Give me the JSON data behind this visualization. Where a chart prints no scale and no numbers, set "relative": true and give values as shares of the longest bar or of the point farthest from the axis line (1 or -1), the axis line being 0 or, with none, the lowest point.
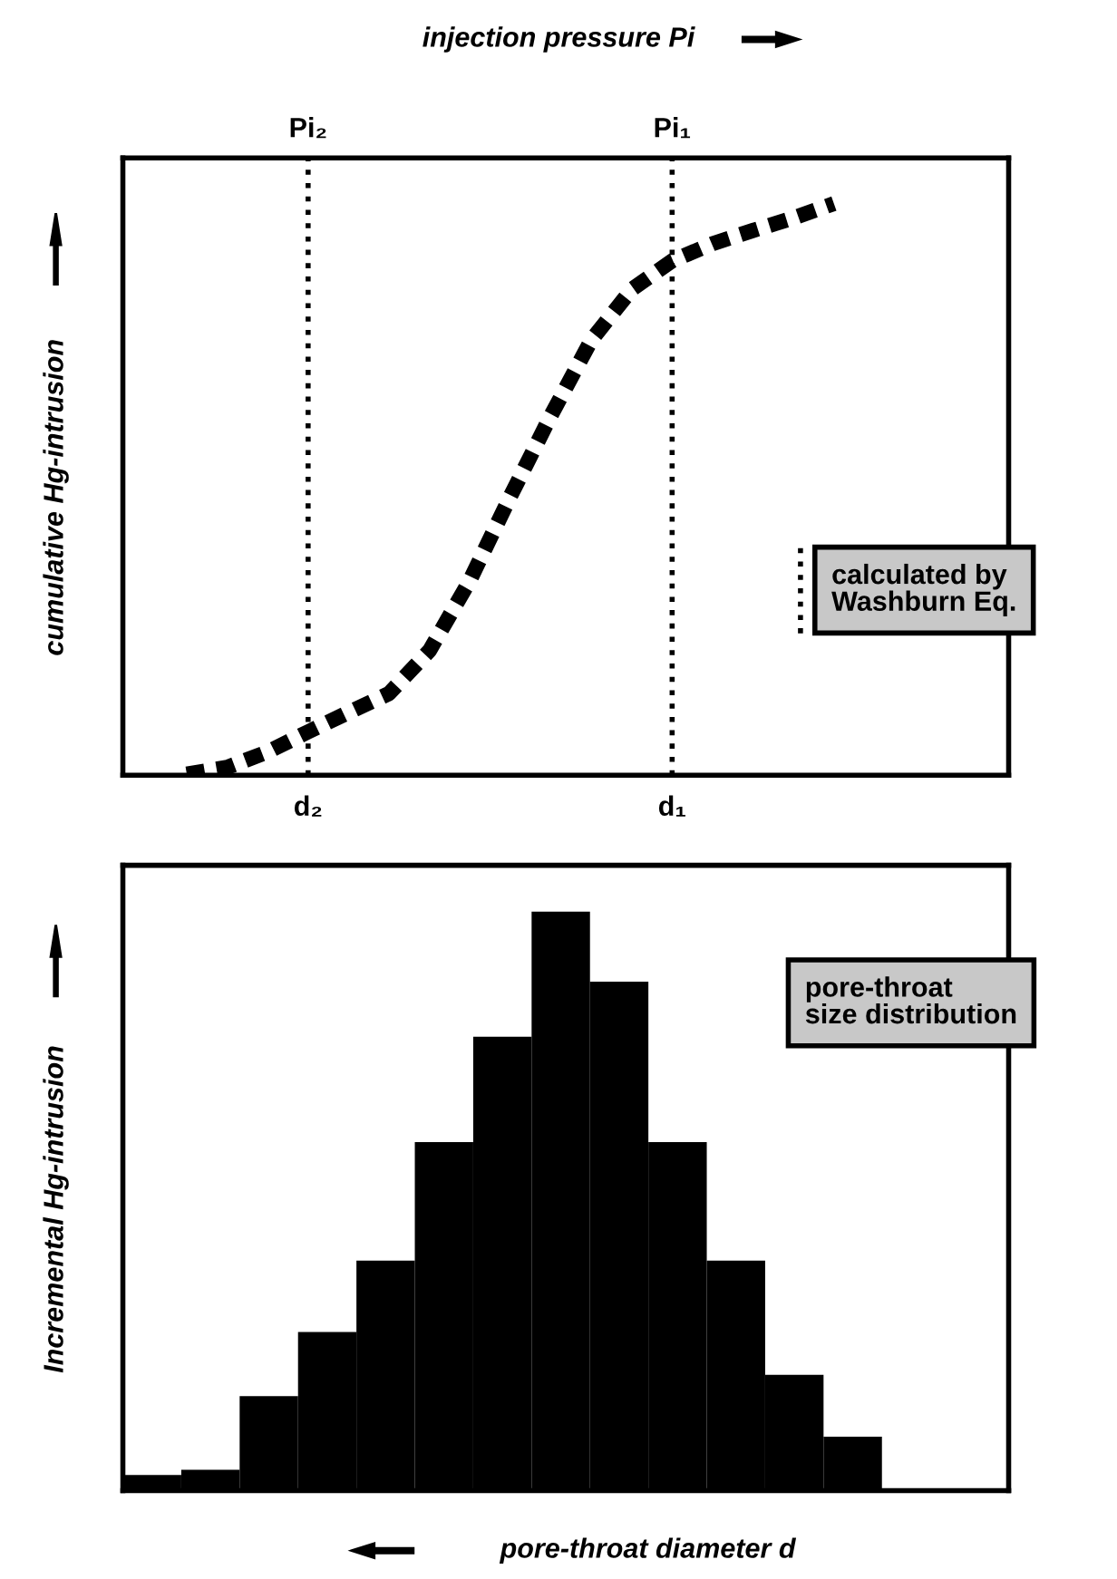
{
  "chart_data": [
    {
      "type": "line",
      "title": "injection pressure Pi",
      "ylabel": "cumulative Hg-intrusion",
      "relative": true,
      "categories": [
        null,
        null,
        null,
        "d₂",
        null,
        null,
        null,
        null,
        null,
        null,
        null,
        null,
        "d₁",
        null,
        null,
        null,
        null
      ],
      "series": [
        {
          "color": "#000000",
          "values": [
            0.002,
            0.014,
            0.041,
            0.076,
            0.11,
            0.143,
            0.218,
            0.341,
            0.488,
            0.629,
            0.761,
            0.85,
            0.9,
            0.93,
            0.953,
            0.975,
            1
          ]
        }
      ],
      "line_style": "dashed",
      "grid": false,
      "ref_lines": [
        {
          "axis": "x",
          "value": "d₂",
          "label": "Pi₂",
          "color": "#000000",
          "line_style": "dotted"
        },
        {
          "axis": "x",
          "value": "d₁",
          "label": "Pi₁",
          "color": "#000000",
          "line_style": "dotted"
        }
      ],
      "annotations": [
        "calculated by\nWashburn Eq."
      ]
    },
    {
      "type": "bar",
      "ylabel": "Incremental Hg-intrusion",
      "xlabel": "pore-throat diameter d",
      "relative": true,
      "categories": [
        null,
        null,
        null,
        null,
        null,
        null,
        null,
        null,
        null,
        null,
        null,
        null,
        null
      ],
      "values": [
        0.027,
        0.036,
        0.163,
        0.274,
        0.397,
        0.602,
        0.784,
        1,
        0.879,
        0.602,
        0.397,
        0.2,
        0.093
      ],
      "color": "#000000",
      "grid": false,
      "annotations": [
        "pore-throat\nsize distribution"
      ]
    }
  ]
}
